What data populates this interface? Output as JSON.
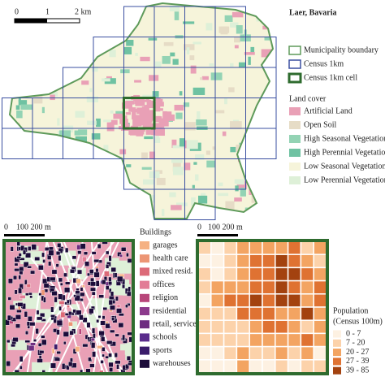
{
  "main_map": {
    "title": "Laer, Bavaria",
    "scale_bar": [
      "0",
      "1",
      "2 km"
    ]
  },
  "boundary_legend": [
    {
      "label": "Municipality boundary",
      "color": "#5e9a5a"
    },
    {
      "label": "Census 1km",
      "color": "#3a4fa0"
    },
    {
      "label": "Census 1km cell",
      "color": "#2e6b2e"
    }
  ],
  "land_cover": {
    "title": "Land cover",
    "items": [
      {
        "label": "Artificial Land",
        "color": "#e9a0b6"
      },
      {
        "label": "Open Soil",
        "color": "#e6dcc6"
      },
      {
        "label": "High Seasonal Vegetation",
        "color": "#93d3b4"
      },
      {
        "label": "High Perennial Vegetation",
        "color": "#6fc2a2"
      },
      {
        "label": "Low Seasonal Vegetation",
        "color": "#f6f4da"
      },
      {
        "label": "Low Perennial Vegetation",
        "color": "#def0d8"
      }
    ]
  },
  "detail_scale_left": [
    "0",
    "100 200 m"
  ],
  "buildings": {
    "title": "Buildings",
    "items": [
      {
        "label": "garages",
        "color": "#f5b183"
      },
      {
        "label": "health care",
        "color": "#ec9574"
      },
      {
        "label": "mixed resid.",
        "color": "#dc6a78"
      },
      {
        "label": "offices",
        "color": "#e27c96"
      },
      {
        "label": "religion",
        "color": "#b8467a"
      },
      {
        "label": "residential",
        "color": "#8c3a8c"
      },
      {
        "label": "retail, services",
        "color": "#6e2c80"
      },
      {
        "label": "schools",
        "color": "#5a2c8c"
      },
      {
        "label": "sports",
        "color": "#3a1c6a"
      },
      {
        "label": "warehouses",
        "color": "#1c0c3a"
      }
    ]
  },
  "detail_scale_right": [
    "0",
    "100 200 m"
  ],
  "population": {
    "title_lines": [
      "Population",
      "(Census 100m)"
    ],
    "items": [
      {
        "label": "0 - 7",
        "color": "#fdf1e2"
      },
      {
        "label": "7 - 20",
        "color": "#fcd2aa"
      },
      {
        "label": "20 - 27",
        "color": "#f3a462"
      },
      {
        "label": "27 - 39",
        "color": "#df7232"
      },
      {
        "label": "39 - 85",
        "color": "#a3420f"
      }
    ]
  }
}
